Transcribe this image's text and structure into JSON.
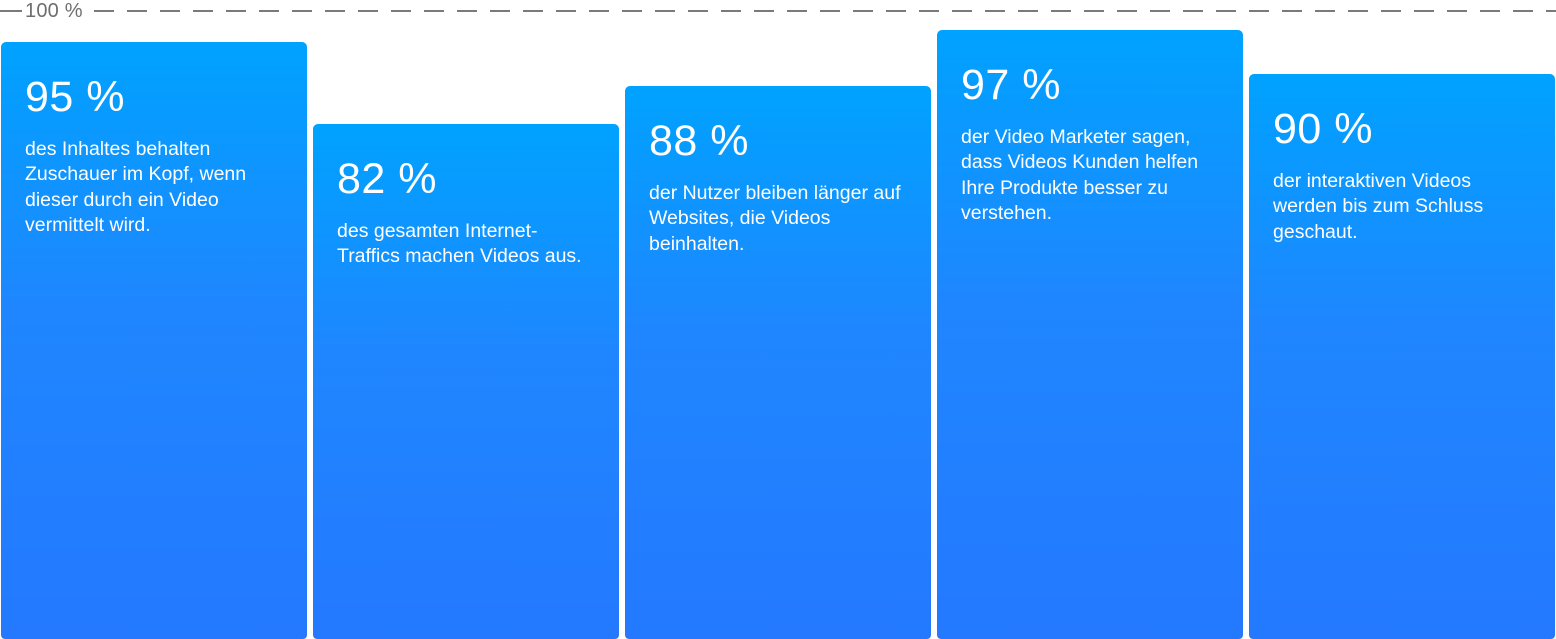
{
  "chart_data": {
    "type": "bar",
    "reference_label": "100 %",
    "ylim": [
      0,
      100
    ],
    "grid": false,
    "categories": [
      "des Inhaltes behalten Zuschauer im Kopf, wenn dieser durch ein Video vermittelt wird.",
      "des gesamten Internet-Traffics machen Videos aus.",
      "der Nutzer bleiben länger auf Websites, die Videos beinhalten.",
      "der Video Marketer sagen, dass Videos Kunden helfen Ihre Produkte besser zu verstehen.",
      "der interaktiven Videos werden bis zum Schluss geschaut."
    ],
    "values": [
      95,
      82,
      88,
      97,
      90
    ],
    "value_labels": [
      "95 %",
      "82 %",
      "88 %",
      "97 %",
      "90 %"
    ],
    "colors": {
      "bar_top": "#00a2ff",
      "bar_bottom": "#2479ff",
      "text": "#ffffff",
      "reference_line": "#7a7a7a"
    }
  }
}
